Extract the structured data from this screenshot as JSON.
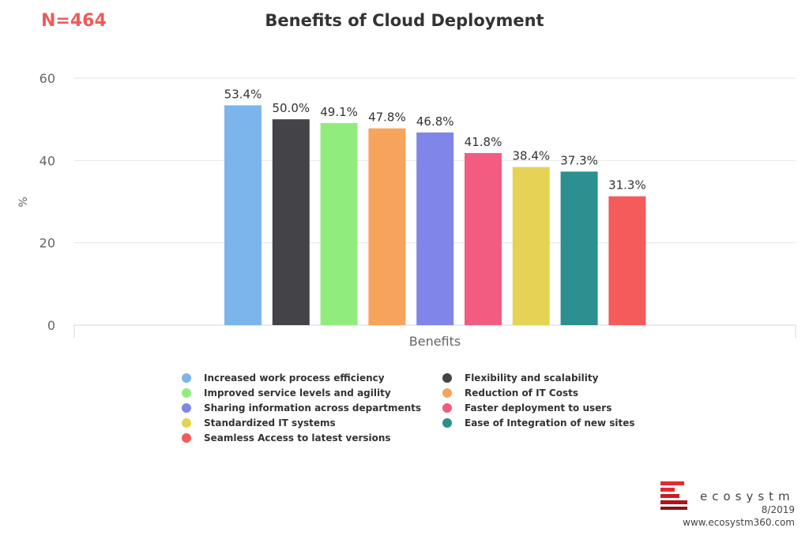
{
  "header": {
    "n_label": "N=464",
    "n_color": "#f05a5a",
    "title": "Benefits of Cloud Deployment"
  },
  "chart_data": {
    "type": "bar",
    "title": "Benefits of Cloud Deployment",
    "xlabel": "Benefits",
    "ylabel": "%",
    "ylim": [
      0,
      60
    ],
    "yticks": [
      0,
      20,
      40,
      60
    ],
    "grid": true,
    "legend_position": "bottom",
    "series": [
      {
        "name": "Increased work process efficiency",
        "value": 53.4,
        "label": "53.4%",
        "color": "#7cb5ec"
      },
      {
        "name": "Flexibility and scalability",
        "value": 50.0,
        "label": "50.0%",
        "color": "#434348"
      },
      {
        "name": "Improved service levels and agility",
        "value": 49.1,
        "label": "49.1%",
        "color": "#90ed7d"
      },
      {
        "name": "Reduction of IT Costs",
        "value": 47.8,
        "label": "47.8%",
        "color": "#f7a35c"
      },
      {
        "name": "Sharing information across departments",
        "value": 46.8,
        "label": "46.8%",
        "color": "#8085e9"
      },
      {
        "name": "Faster deployment to users",
        "value": 41.8,
        "label": "41.8%",
        "color": "#f15c80"
      },
      {
        "name": "Standardized IT systems",
        "value": 38.4,
        "label": "38.4%",
        "color": "#e4d354"
      },
      {
        "name": "Ease of Integration of new sites",
        "value": 37.3,
        "label": "37.3%",
        "color": "#2b908f"
      },
      {
        "name": "Seamless Access to latest versions",
        "value": 31.3,
        "label": "31.3%",
        "color": "#f45b5b"
      }
    ]
  },
  "footer": {
    "brand": "ecosystm",
    "date": "8/2019",
    "website": "www.ecosystm360.com",
    "logo_color": "#e8292e"
  }
}
